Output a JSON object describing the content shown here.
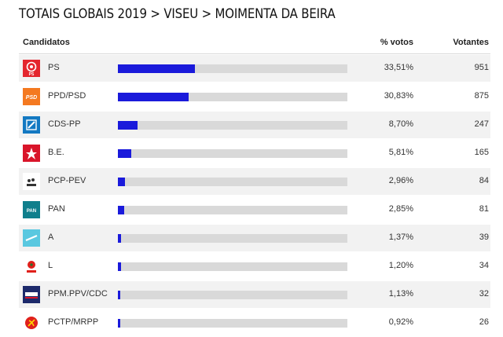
{
  "page_title": "TOTAIS GLOBAIS 2019 > VISEU > MOIMENTA DA BEIRA",
  "columns": {
    "candidates": "Candidatos",
    "percent": "% votos",
    "voters": "Votantes"
  },
  "parties": [
    {
      "name": "PS",
      "percent": "33,51%",
      "voters": "951",
      "share": 33.51,
      "logo_icon": "ps-logo-icon",
      "logo_color": "#e4262e",
      "logo_text": "PS"
    },
    {
      "name": "PPD/PSD",
      "percent": "30,83%",
      "voters": "875",
      "share": 30.83,
      "logo_icon": "psd-logo-icon",
      "logo_color": "#f47920",
      "logo_text": "PSD"
    },
    {
      "name": "CDS-PP",
      "percent": "8,70%",
      "voters": "247",
      "share": 8.7,
      "logo_icon": "cds-logo-icon",
      "logo_color": "#1479c2",
      "logo_text": ""
    },
    {
      "name": "B.E.",
      "percent": "5,81%",
      "voters": "165",
      "share": 5.81,
      "logo_icon": "be-logo-icon",
      "logo_color": "#d9152a",
      "logo_text": ""
    },
    {
      "name": "PCP-PEV",
      "percent": "2,96%",
      "voters": "84",
      "share": 2.96,
      "logo_icon": "cdu-logo-icon",
      "logo_color": "#ffffff",
      "logo_text": ""
    },
    {
      "name": "PAN",
      "percent": "2,85%",
      "voters": "81",
      "share": 2.85,
      "logo_icon": "pan-logo-icon",
      "logo_color": "#0f7f8c",
      "logo_text": "PAN"
    },
    {
      "name": "A",
      "percent": "1,37%",
      "voters": "39",
      "share": 1.37,
      "logo_icon": "alianca-logo-icon",
      "logo_color": "#5ac8e0",
      "logo_text": ""
    },
    {
      "name": "L",
      "percent": "1,20%",
      "voters": "34",
      "share": 1.2,
      "logo_icon": "livre-logo-icon",
      "logo_color": "#ffffff",
      "logo_text": ""
    },
    {
      "name": "PPM.PPV/CDC",
      "percent": "1,13%",
      "voters": "32",
      "share": 1.13,
      "logo_icon": "basta-logo-icon",
      "logo_color": "#1d2a6b",
      "logo_text": ""
    },
    {
      "name": "PCTP/MRPP",
      "percent": "0,92%",
      "voters": "26",
      "share": 0.92,
      "logo_icon": "pctp-logo-icon",
      "logo_color": "#ffffff",
      "logo_text": ""
    }
  ],
  "bar_color": "#1a1adb"
}
